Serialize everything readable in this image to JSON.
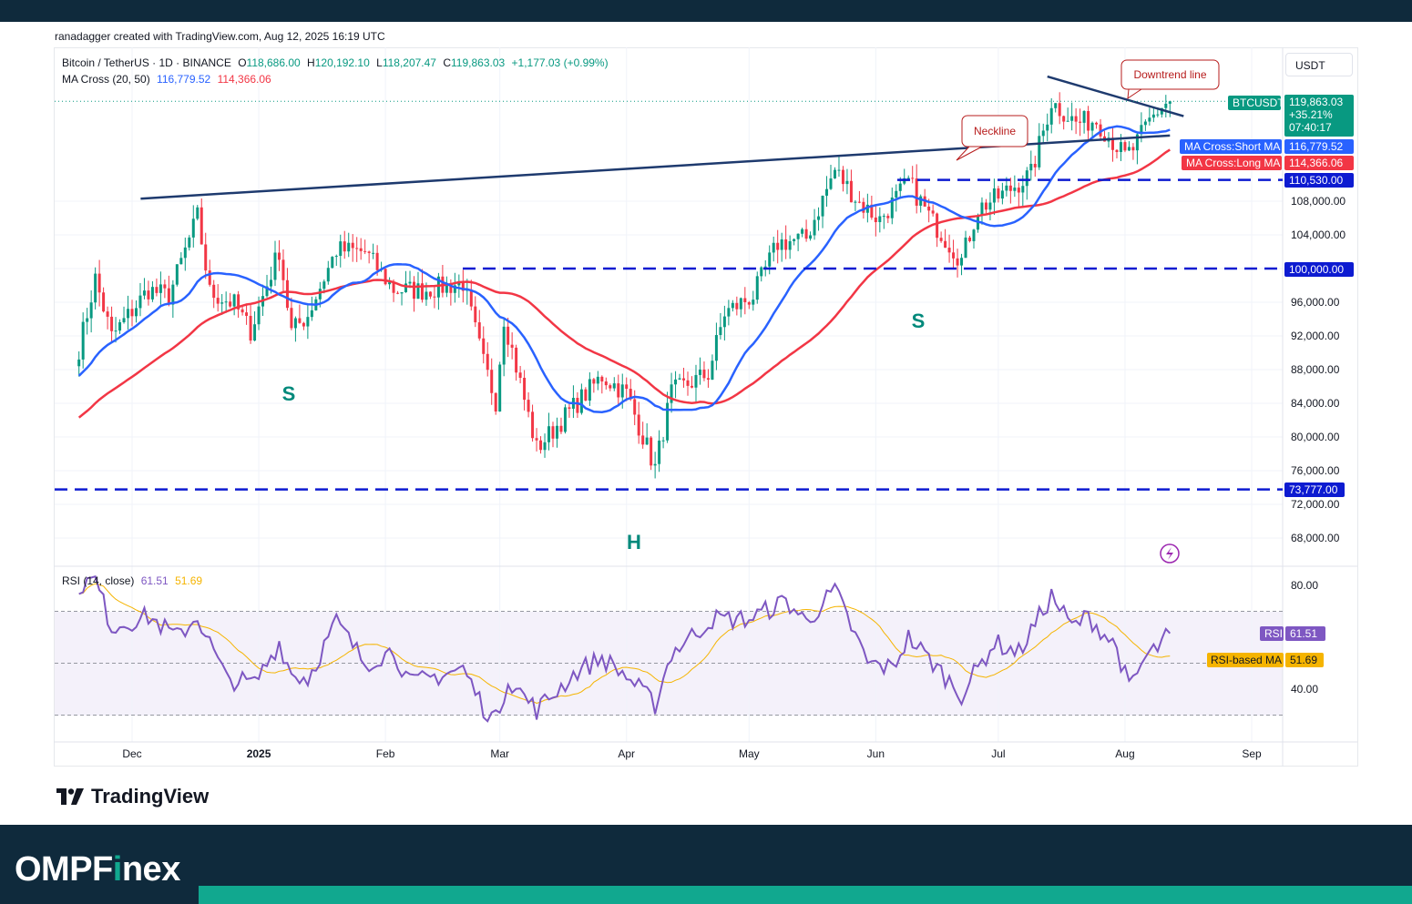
{
  "header": {
    "credit": "ranadagger created with TradingView.com, Aug 12, 2025 16:19 UTC"
  },
  "legend": {
    "symbol": "Bitcoin / TetherUS · 1D · BINANCE",
    "o_label": "O",
    "o_value": "118,686.00",
    "h_label": "H",
    "h_value": "120,192.10",
    "l_label": "L",
    "l_value": "118,207.47",
    "c_label": "C",
    "c_value": "119,863.03",
    "change": "+1,177.03 (+0.99%)",
    "ma_label": "MA Cross (20, 50)",
    "ma_short": "116,779.52",
    "ma_long": "114,366.06",
    "rsi_label": "RSI (14, close)",
    "rsi_value": "61.51",
    "rsi_ma_value": "51.69"
  },
  "currency": "USDT",
  "colors": {
    "up": "#089981",
    "down": "#f23645",
    "ma_short": "#2962ff",
    "ma_long": "#f23645",
    "rsi": "#7e57c2",
    "rsi_ma": "#f5b400",
    "level_line": "#0d1bd1",
    "trend_line": "#1e3a6e",
    "annotation": "#b71c1c",
    "pattern_letter": "#00897b"
  },
  "annotations": {
    "downtrend": "Downtrend line",
    "neckline": "Neckline",
    "left_shoulder": "S",
    "head": "H",
    "right_shoulder": "S"
  },
  "price_tags": {
    "symbol_name": "BTCUSDT",
    "last_price": "119,863.03",
    "change_pct": "+35.21%",
    "countdown": "07:40:17",
    "short_ma_name": "MA Cross:Short MA",
    "short_ma_value": "116,779.52",
    "long_ma_name": "MA Cross:Long MA",
    "long_ma_value": "114,366.06",
    "level_1": "110,530.00",
    "level_2": "100,000.00",
    "level_3": "73,777.00",
    "rsi_name": "RSI",
    "rsi_value": "61.51",
    "rsi_ma_name": "RSI-based MA",
    "rsi_ma_value": "51.69"
  },
  "chart_data": {
    "type": "candlestick",
    "price_ticks": [
      "108,000.00",
      "104,000.00",
      "100,000.00",
      "96,000.00",
      "92,000.00",
      "88,000.00",
      "84,000.00",
      "80,000.00",
      "76,000.00",
      "72,000.00",
      "68,000.00"
    ],
    "price_tick_values": [
      108000,
      104000,
      100000,
      96000,
      92000,
      88000,
      84000,
      80000,
      76000,
      72000,
      68000
    ],
    "rsi_ticks": [
      "80.00",
      "40.00"
    ],
    "rsi_tick_values": [
      80,
      40
    ],
    "x_ticks": [
      "Dec",
      "2025",
      "Feb",
      "Mar",
      "Apr",
      "May",
      "Jun",
      "Jul",
      "Aug",
      "Sep"
    ],
    "x_tick_dates": [
      "2024-12-01",
      "2025-01-01",
      "2025-02-01",
      "2025-03-01",
      "2025-04-01",
      "2025-05-01",
      "2025-06-01",
      "2025-07-01",
      "2025-08-01",
      "2025-09-01"
    ],
    "horizontal_levels": [
      110530,
      100000,
      73777
    ],
    "close_series": {
      "start_date": "2024-11-18",
      "end_date": "2025-08-12",
      "keypoints": [
        [
          "2024-11-18",
          90500
        ],
        [
          "2024-11-22",
          98800
        ],
        [
          "2024-11-26",
          91900
        ],
        [
          "2024-12-05",
          97500
        ],
        [
          "2024-12-10",
          96700
        ],
        [
          "2024-12-17",
          106200
        ],
        [
          "2024-12-20",
          97200
        ],
        [
          "2024-12-26",
          95800
        ],
        [
          "2024-12-30",
          92600
        ],
        [
          "2025-01-06",
          102200
        ],
        [
          "2025-01-09",
          92500
        ],
        [
          "2025-01-13",
          94500
        ],
        [
          "2025-01-20",
          102200
        ],
        [
          "2025-01-27",
          102000
        ],
        [
          "2025-02-03",
          97500
        ],
        [
          "2025-02-10",
          97400
        ],
        [
          "2025-02-20",
          98300
        ],
        [
          "2025-02-25",
          88800
        ],
        [
          "2025-02-28",
          84300
        ],
        [
          "2025-03-02",
          94200
        ],
        [
          "2025-03-10",
          78600
        ],
        [
          "2025-03-20",
          84100
        ],
        [
          "2025-03-26",
          87200
        ],
        [
          "2025-04-01",
          85200
        ],
        [
          "2025-04-08",
          76300
        ],
        [
          "2025-04-12",
          85300
        ],
        [
          "2025-04-21",
          87500
        ],
        [
          "2025-04-25",
          94700
        ],
        [
          "2025-05-02",
          96800
        ],
        [
          "2025-05-08",
          103000
        ],
        [
          "2025-05-15",
          103600
        ],
        [
          "2025-05-22",
          111700
        ],
        [
          "2025-05-28",
          107800
        ],
        [
          "2025-06-02",
          105800
        ],
        [
          "2025-06-09",
          110300
        ],
        [
          "2025-06-15",
          105500
        ],
        [
          "2025-06-22",
          101000
        ],
        [
          "2025-06-26",
          107100
        ],
        [
          "2025-07-02",
          108800
        ],
        [
          "2025-07-09",
          111200
        ],
        [
          "2025-07-14",
          119800
        ],
        [
          "2025-07-20",
          117300
        ],
        [
          "2025-07-25",
          117600
        ],
        [
          "2025-08-01",
          113300
        ],
        [
          "2025-08-03",
          114200
        ],
        [
          "2025-08-07",
          117500
        ],
        [
          "2025-08-10",
          119300
        ],
        [
          "2025-08-12",
          119863
        ]
      ]
    },
    "rsi_keypoints": [
      [
        "2024-11-18",
        80
      ],
      [
        "2024-11-22",
        82
      ],
      [
        "2024-11-26",
        64
      ],
      [
        "2024-12-05",
        68
      ],
      [
        "2024-12-12",
        60
      ],
      [
        "2024-12-17",
        68
      ],
      [
        "2024-12-24",
        44
      ],
      [
        "2024-12-31",
        42
      ],
      [
        "2025-01-06",
        58
      ],
      [
        "2025-01-09",
        46
      ],
      [
        "2025-01-13",
        44
      ],
      [
        "2025-01-20",
        66
      ],
      [
        "2025-01-27",
        50
      ],
      [
        "2025-02-03",
        55
      ],
      [
        "2025-02-07",
        42
      ],
      [
        "2025-02-20",
        48
      ],
      [
        "2025-02-25",
        33
      ],
      [
        "2025-02-28",
        28
      ],
      [
        "2025-03-03",
        44
      ],
      [
        "2025-03-10",
        32
      ],
      [
        "2025-03-20",
        47
      ],
      [
        "2025-03-26",
        52
      ],
      [
        "2025-04-01",
        45
      ],
      [
        "2025-04-08",
        34
      ],
      [
        "2025-04-12",
        54
      ],
      [
        "2025-04-22",
        67
      ],
      [
        "2025-05-01",
        67
      ],
      [
        "2025-05-10",
        74
      ],
      [
        "2025-05-15",
        66
      ],
      [
        "2025-05-22",
        78
      ],
      [
        "2025-05-30",
        50
      ],
      [
        "2025-06-05",
        48
      ],
      [
        "2025-06-09",
        60
      ],
      [
        "2025-06-15",
        50
      ],
      [
        "2025-06-22",
        38
      ],
      [
        "2025-06-30",
        58
      ],
      [
        "2025-07-06",
        54
      ],
      [
        "2025-07-14",
        76
      ],
      [
        "2025-07-19",
        64
      ],
      [
        "2025-07-23",
        68
      ],
      [
        "2025-07-30",
        56
      ],
      [
        "2025-08-02",
        40
      ],
      [
        "2025-08-06",
        52
      ],
      [
        "2025-08-09",
        56
      ],
      [
        "2025-08-12",
        61.51
      ]
    ],
    "ma_short_last": 116779.52,
    "ma_long_last": 114366.06,
    "neckline": [
      [
        "2024-12-08",
        108300
      ],
      [
        "2025-08-12",
        115800
      ]
    ],
    "downtrend": [
      [
        "2025-07-13",
        122800
      ],
      [
        "2025-08-12",
        116800
      ]
    ]
  }
}
